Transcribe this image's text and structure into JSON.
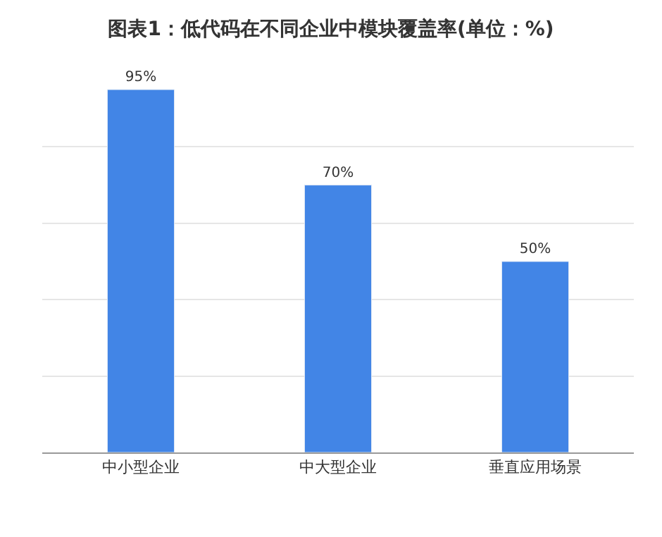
{
  "chart_data": {
    "type": "bar",
    "title": "图表1：低代码在不同企业中模块覆盖率(单位：%)",
    "categories": [
      "中小型企业",
      "中大型企业",
      "垂直应用场景"
    ],
    "values": [
      95,
      70,
      50
    ],
    "color": "#4285e6",
    "value_labels": [
      "95%",
      "70%",
      "50%"
    ],
    "grid": "y",
    "tick_labels": "x"
  }
}
